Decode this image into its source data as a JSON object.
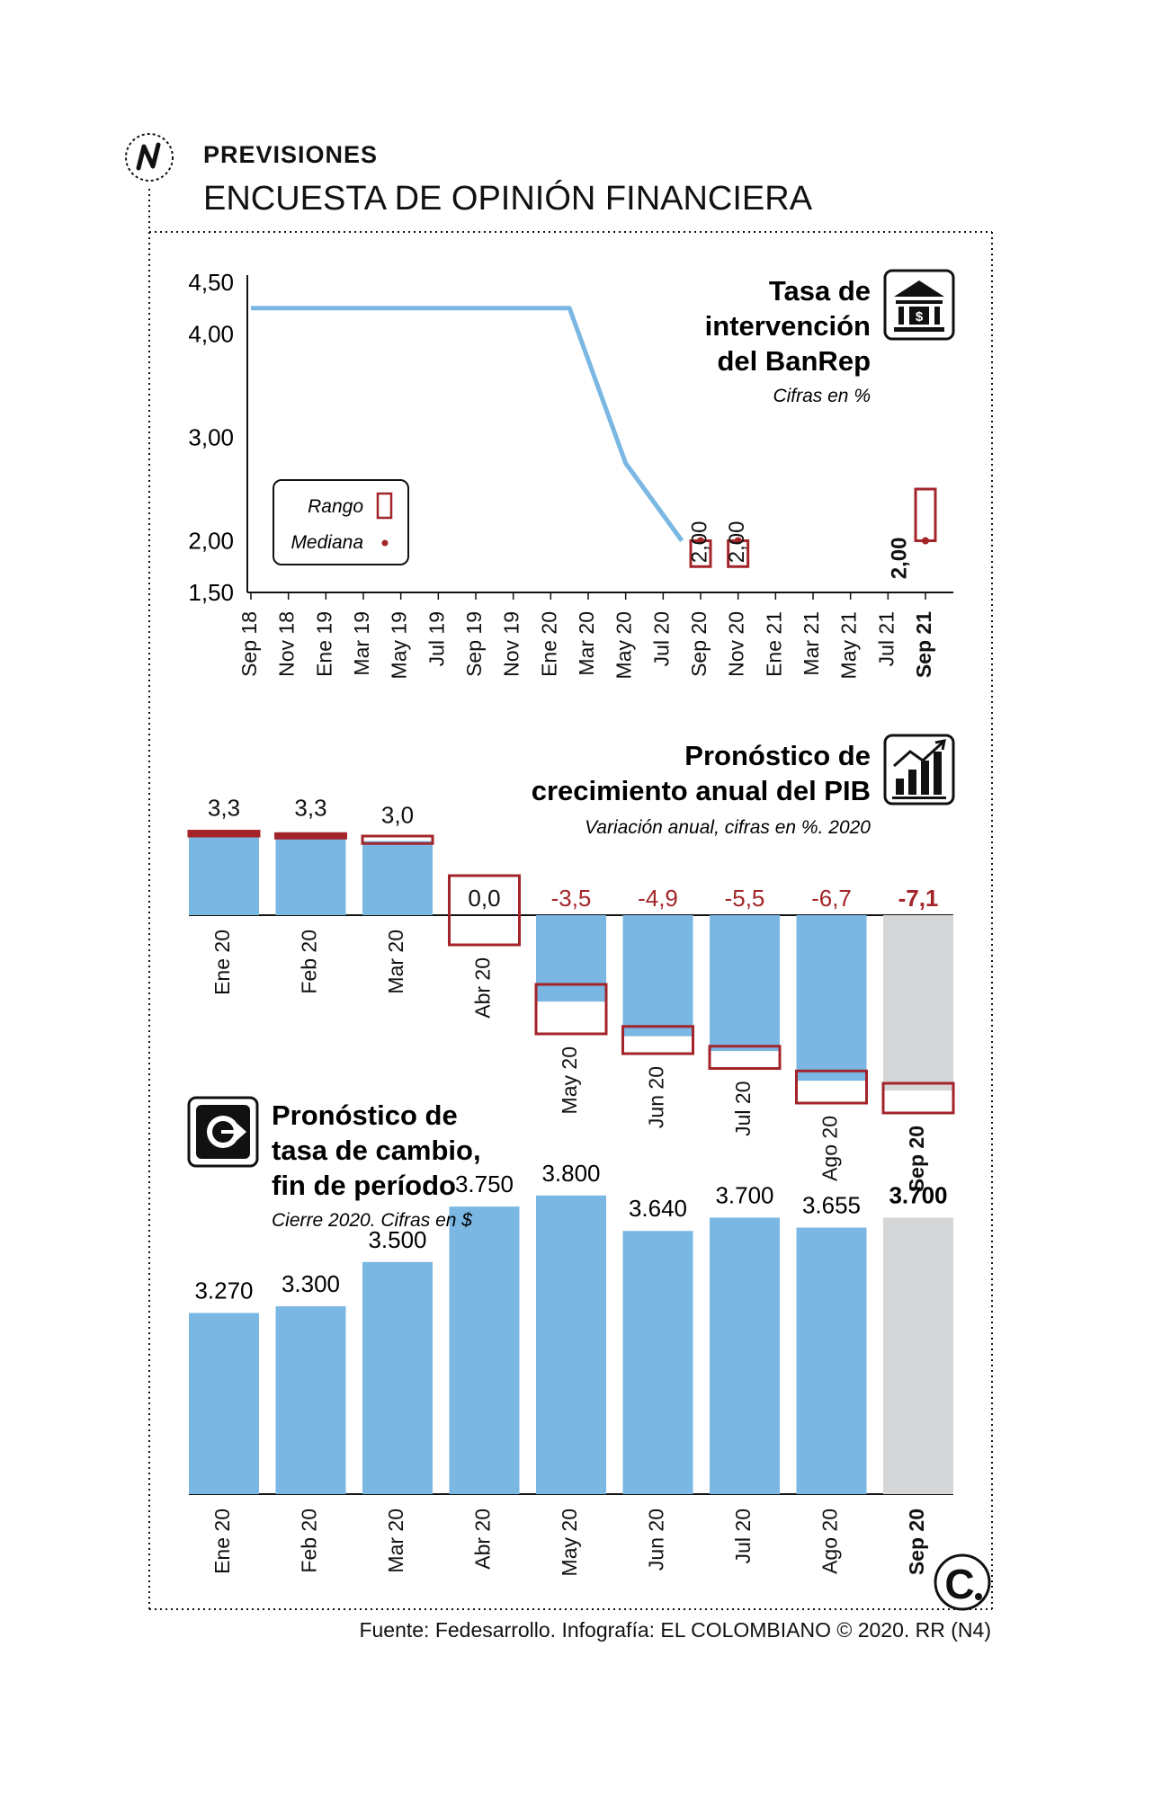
{
  "header": {
    "kicker": "PREVISIONES",
    "title": "ENCUESTA DE OPINIÓN FINANCIERA"
  },
  "source": "Fuente: Fedesarrollo. Infografía: EL COLOMBIANO © 2020. RR (N4)",
  "colors": {
    "series_blue": "#7ab7e2",
    "range_red": "#a3252a",
    "highlight_gray": "#d5d6d8",
    "border_dark": "#1a1a1a"
  },
  "icons": [
    "logo-n-icon",
    "bank-icon",
    "growth-chart-icon",
    "currency-exchange-icon",
    "el-colombiano-logo-icon"
  ],
  "chart_data": [
    {
      "type": "line",
      "title": "Tasa de intervención del BanRep",
      "subtitle": "Cifras en %",
      "y_ticks": [
        "4,50",
        "4,00",
        "3,00",
        "2,00",
        "1,50"
      ],
      "ylim": [
        1.5,
        4.5
      ],
      "x_ticks": [
        "Sep 18",
        "Nov 18",
        "Ene 19",
        "Mar 19",
        "May 19",
        "Jul 19",
        "Sep 19",
        "Nov 19",
        "Ene 20",
        "Mar 20",
        "May 20",
        "Jul 20",
        "Sep 20",
        "Nov 20",
        "Ene 21",
        "Mar 21",
        "May 21",
        "Jul 21",
        "Sep 21"
      ],
      "series": [
        {
          "x": [
            "Sep 18",
            "Nov 18",
            "Ene 19",
            "Mar 19",
            "May 19",
            "Jul 19",
            "Sep 19",
            "Nov 19",
            "Ene 20",
            "Feb 20",
            "Mar 20",
            "Abr 20",
            "May 20",
            "Jun 20",
            "Jul 20",
            "Ago 20"
          ],
          "values": [
            4.25,
            4.25,
            4.25,
            4.25,
            4.25,
            4.25,
            4.25,
            4.25,
            4.25,
            4.25,
            3.75,
            3.25,
            2.75,
            2.5,
            2.25,
            2.0
          ]
        }
      ],
      "forecasts": [
        {
          "x": "Sep 20",
          "median": 2.0,
          "median_label": "2,00",
          "range": [
            1.75,
            2.0
          ]
        },
        {
          "x": "Nov 20",
          "median": 2.0,
          "median_label": "2,00",
          "range": [
            1.75,
            2.0
          ]
        },
        {
          "x": "Sep 21",
          "median": 2.0,
          "median_label": "2,00",
          "range": [
            2.0,
            2.5
          ]
        }
      ],
      "legend": {
        "range_label": "Rango",
        "median_label": "Mediana"
      },
      "grid": false
    },
    {
      "type": "bar",
      "title": "Pronóstico de crecimiento anual del PIB",
      "subtitle": "Variación anual, cifras en %. 2020",
      "categories": [
        "Ene 20",
        "Feb 20",
        "Mar 20",
        "Abr 20",
        "May 20",
        "Jun 20",
        "Jul 20",
        "Ago 20",
        "Sep 20"
      ],
      "values": [
        3.3,
        3.3,
        3.0,
        0.0,
        -3.5,
        -4.9,
        -5.5,
        -6.7,
        -7.1
      ],
      "value_labels": [
        "3,3",
        "3,3",
        "3,0",
        "0,0",
        "-3,5",
        "-4,9",
        "-5,5",
        "-6,7",
        "-7,1"
      ],
      "ranges": [
        [
          3.2,
          3.4
        ],
        [
          3.2,
          3.3
        ],
        [
          2.9,
          3.2
        ],
        [
          -1.2,
          1.6
        ],
        [
          -2.8,
          -4.8
        ],
        [
          -4.5,
          -5.6
        ],
        [
          -5.3,
          -6.2
        ],
        [
          -6.3,
          -7.6
        ],
        [
          -6.8,
          -8.0
        ]
      ],
      "highlight": "Sep 20"
    },
    {
      "type": "bar",
      "title": "Pronóstico de tasa de cambio, fin de período",
      "subtitle": "Cierre 2020. Cifras en $",
      "categories": [
        "Ene 20",
        "Feb 20",
        "Mar 20",
        "Abr 20",
        "May 20",
        "Jun 20",
        "Jul 20",
        "Ago 20",
        "Sep 20"
      ],
      "values": [
        3270,
        3300,
        3500,
        3750,
        3800,
        3640,
        3700,
        3655,
        3700
      ],
      "value_labels": [
        "3.270",
        "3.300",
        "3.500",
        "3.750",
        "3.800",
        "3.640",
        "3.700",
        "3.655",
        "3.700"
      ],
      "highlight": "Sep 20"
    }
  ]
}
